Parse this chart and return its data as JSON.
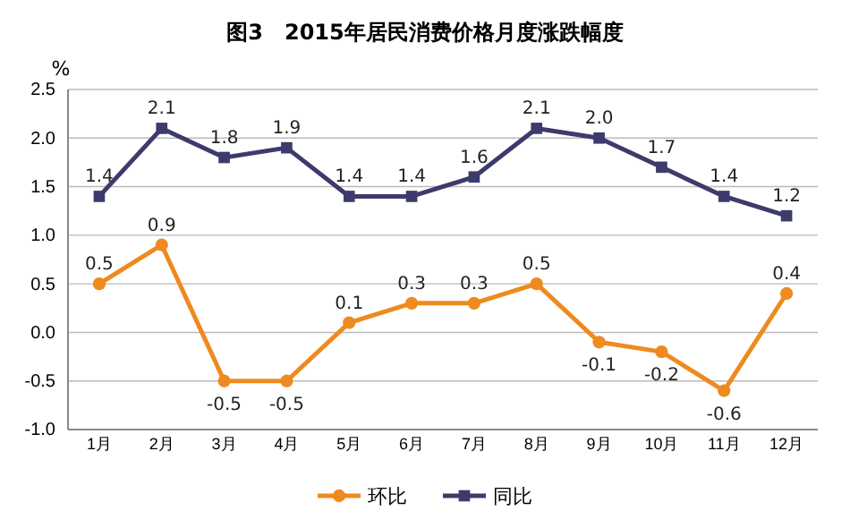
{
  "chart_data": {
    "type": "line",
    "title": "图3　2015年居民消费价格月度涨跌幅度",
    "ylabel": "%",
    "categories": [
      "1月",
      "2月",
      "3月",
      "4月",
      "5月",
      "6月",
      "7月",
      "8月",
      "9月",
      "10月",
      "11月",
      "12月"
    ],
    "series": [
      {
        "name": "环比",
        "color": "#ee8a1f",
        "marker": "circle",
        "values": [
          0.5,
          0.9,
          -0.5,
          -0.5,
          0.1,
          0.3,
          0.3,
          0.5,
          -0.1,
          -0.2,
          -0.6,
          0.4
        ],
        "value_labels": [
          "0.5",
          "0.9",
          "-0.5",
          "-0.5",
          "0.1",
          "0.3",
          "0.3",
          "0.5",
          "-0.1",
          "-0.2",
          "-0.6",
          "0.4"
        ]
      },
      {
        "name": "同比",
        "color": "#3d3b6b",
        "marker": "square",
        "values": [
          1.4,
          2.1,
          1.8,
          1.9,
          1.4,
          1.4,
          1.6,
          2.1,
          2.0,
          1.7,
          1.4,
          1.2
        ],
        "value_labels": [
          "1.4",
          "2.1",
          "1.8",
          "1.9",
          "1.4",
          "1.4",
          "1.6",
          "2.1",
          "2.0",
          "1.7",
          "1.4",
          "1.2"
        ]
      }
    ],
    "ylim": [
      -1.0,
      2.5
    ],
    "yticks": [
      {
        "value": -1.0,
        "label": "-1.0"
      },
      {
        "value": -0.5,
        "label": "-0.5"
      },
      {
        "value": 0,
        "label": "0.0"
      },
      {
        "value": 0.5,
        "label": "0.5"
      },
      {
        "value": 1.0,
        "label": "1.0"
      },
      {
        "value": 1.5,
        "label": "1.5"
      },
      {
        "value": 2.0,
        "label": "2.0"
      },
      {
        "value": 2.5,
        "label": "2.5"
      }
    ],
    "grid": "y",
    "legend": "bottom",
    "line_style": "solid"
  }
}
